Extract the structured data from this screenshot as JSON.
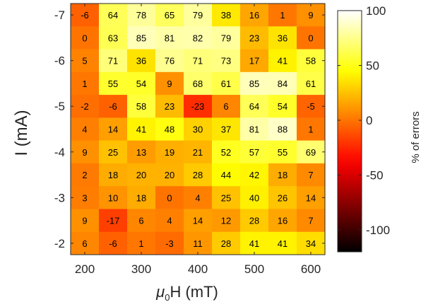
{
  "chart_data": {
    "type": "heatmap",
    "xlabel": "H (mT)",
    "xlabel_symbol": "μ",
    "xlabel_subscript": "0",
    "ylabel": "I (mA)",
    "colorbar_label": "% of errors",
    "x": [
      200,
      250,
      300,
      350,
      400,
      450,
      500,
      550,
      600
    ],
    "y": [
      -7,
      -6.5,
      -6,
      -5.5,
      -5,
      -4.5,
      -4,
      -3.5,
      -3,
      -2.5,
      -2
    ],
    "x_ticks": [
      200,
      300,
      400,
      500,
      600
    ],
    "y_ticks": [
      -7,
      -6,
      -5,
      -4,
      -3,
      -2
    ],
    "colorbar_ticks": [
      100,
      50,
      0,
      -50,
      -100
    ],
    "colorbar_range": [
      -120,
      100
    ],
    "colormap": "hot",
    "values": [
      [
        -6,
        64,
        78,
        65,
        79,
        38,
        16,
        1,
        9
      ],
      [
        0,
        63,
        85,
        81,
        82,
        79,
        23,
        36,
        0
      ],
      [
        5,
        71,
        36,
        76,
        71,
        73,
        17,
        41,
        58
      ],
      [
        1,
        55,
        54,
        9,
        68,
        61,
        85,
        84,
        61
      ],
      [
        -2,
        -6,
        58,
        23,
        -23,
        6,
        64,
        54,
        -5
      ],
      [
        4,
        14,
        41,
        48,
        30,
        37,
        81,
        88,
        1
      ],
      [
        9,
        25,
        13,
        19,
        21,
        52,
        57,
        55,
        69
      ],
      [
        2,
        18,
        20,
        20,
        28,
        44,
        42,
        18,
        7
      ],
      [
        3,
        10,
        18,
        0,
        4,
        25,
        40,
        26,
        14
      ],
      [
        9,
        -17,
        6,
        4,
        14,
        12,
        28,
        16,
        7
      ],
      [
        6,
        -6,
        1,
        -3,
        11,
        28,
        41,
        41,
        34
      ]
    ]
  }
}
